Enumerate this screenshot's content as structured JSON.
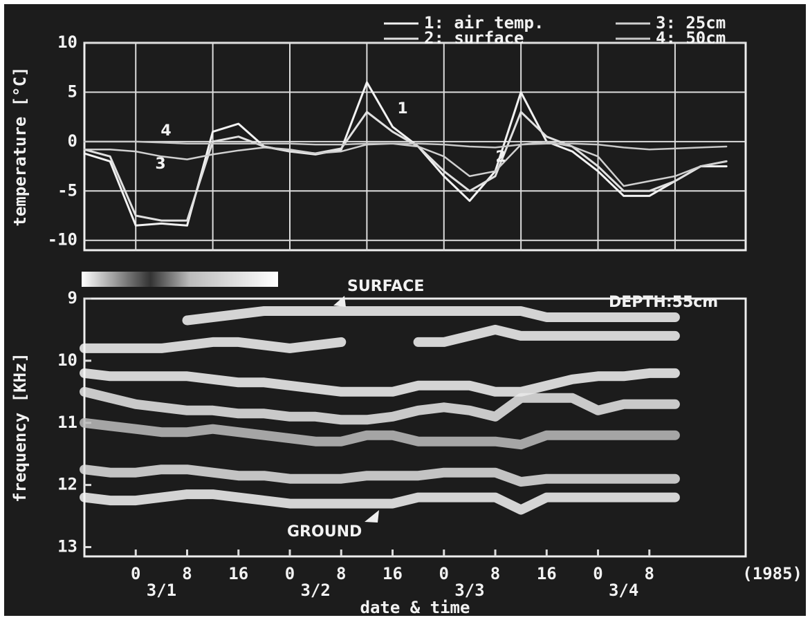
{
  "chart_data": [
    {
      "type": "line",
      "ylabel": "temperature [°C]",
      "x": [
        -8,
        -4,
        0,
        4,
        8,
        12,
        16,
        20,
        24,
        28,
        32,
        36,
        40,
        44,
        48,
        52,
        56,
        60,
        64,
        68,
        72,
        76,
        80,
        84,
        88,
        92
      ],
      "xlim": [
        -8,
        95
      ],
      "xticks": [
        0,
        12,
        24,
        36,
        48,
        60,
        72,
        84
      ],
      "ylim": [
        -11,
        10
      ],
      "yticks": [
        10,
        5,
        0,
        -5,
        -10
      ],
      "grid": true,
      "series": [
        {
          "name": "1: air temp.",
          "color": "#f2f2f2",
          "values": [
            -1.2,
            -2,
            -8.5,
            -8.3,
            -8.5,
            1,
            1.8,
            -0.5,
            -1,
            -1.3,
            -0.8,
            6,
            1.5,
            -0.5,
            -3.5,
            -6,
            -3,
            5,
            0,
            -1,
            -3,
            -5.5,
            -5.5,
            -4,
            -2.5,
            -2.5
          ]
        },
        {
          "name": "2: surface",
          "color": "#e0e0e0",
          "values": [
            -0.8,
            -1.5,
            -7.5,
            -8,
            -8,
            0,
            0.5,
            -0.5,
            -1,
            -1.2,
            -0.7,
            3,
            1,
            -0.5,
            -3,
            -5,
            -3.5,
            3,
            0.5,
            -0.5,
            -2.5,
            -5,
            -5,
            -4,
            -2.5,
            -2
          ]
        },
        {
          "name": "3: 25cm",
          "color": "#d0d0d0",
          "values": [
            -0.8,
            -0.8,
            -1,
            -1.5,
            -1.8,
            -1.3,
            -0.9,
            -0.6,
            -0.8,
            -1.2,
            -1,
            -0.3,
            -0.2,
            -0.5,
            -1.5,
            -3.5,
            -3,
            -0.3,
            0,
            -0.5,
            -1.5,
            -4.5,
            -4,
            -3.5,
            -2.5,
            -2
          ]
        },
        {
          "name": "4: 50cm",
          "color": "#c8c8c8",
          "values": [
            0,
            0,
            0,
            -0.1,
            -0.2,
            -0.2,
            -0.2,
            -0.2,
            -0.2,
            -0.3,
            -0.3,
            -0.2,
            -0.2,
            -0.2,
            -0.3,
            -0.5,
            -0.6,
            -0.3,
            -0.2,
            -0.2,
            -0.3,
            -0.6,
            -0.8,
            -0.7,
            -0.6,
            -0.5
          ]
        }
      ],
      "annotations": [
        "1",
        "2",
        "3",
        "4"
      ]
    },
    {
      "type": "echo",
      "ylabel": "frequency [KHz]",
      "xlabel": "date & time",
      "year": "(1985)",
      "x": [
        -8,
        -4,
        0,
        4,
        8,
        12,
        16,
        20,
        24,
        28,
        32,
        36,
        40,
        44,
        48,
        52,
        56,
        60,
        64,
        68,
        72,
        76,
        80,
        84,
        88,
        92
      ],
      "xlim": [
        -8,
        95
      ],
      "xticks": [
        0,
        8,
        16,
        {
          "value": 24,
          "label": "0"
        },
        {
          "value": 32,
          "label": "8"
        },
        {
          "value": 40,
          "label": "16"
        },
        {
          "value": 48,
          "label": "0"
        },
        {
          "value": 56,
          "label": "8"
        },
        {
          "value": 64,
          "label": "16"
        },
        {
          "value": 72,
          "label": "0"
        },
        {
          "value": 80,
          "label": "8"
        }
      ],
      "date_labels": [
        {
          "value": 4,
          "label": "3/1"
        },
        {
          "value": 28,
          "label": "3/2"
        },
        {
          "value": 52,
          "label": "3/3"
        },
        {
          "value": 76,
          "label": "3/4"
        }
      ],
      "ylim": [
        9,
        13.15
      ],
      "yticks": [
        9,
        10,
        11,
        12,
        13
      ],
      "inverted": true,
      "series": [
        {
          "color": "#f4f4f4",
          "values": [
            null,
            null,
            null,
            null,
            9.35,
            9.3,
            9.25,
            9.2,
            9.2,
            9.2,
            9.2,
            9.2,
            9.2,
            9.2,
            9.2,
            9.2,
            9.2,
            9.2,
            9.3,
            9.3,
            9.3,
            9.3,
            9.3,
            9.3,
            null,
            null
          ]
        },
        {
          "color": "#f4f4f4",
          "values": [
            9.8,
            9.8,
            9.8,
            9.8,
            9.75,
            9.7,
            9.7,
            9.75,
            9.8,
            9.75,
            9.7,
            null,
            null,
            9.7,
            9.7,
            9.6,
            9.5,
            9.6,
            9.6,
            9.6,
            9.6,
            9.6,
            9.6,
            9.6,
            null,
            null
          ]
        },
        {
          "color": "#f4f4f4",
          "values": [
            10.2,
            10.25,
            10.25,
            10.25,
            10.25,
            10.3,
            10.35,
            10.35,
            10.4,
            10.45,
            10.5,
            10.5,
            10.5,
            10.4,
            10.4,
            10.4,
            10.5,
            10.5,
            10.4,
            10.3,
            10.25,
            10.25,
            10.2,
            10.2,
            null,
            null
          ]
        },
        {
          "color": "#e8e8e8",
          "values": [
            10.5,
            10.6,
            10.7,
            10.75,
            10.8,
            10.8,
            10.85,
            10.85,
            10.9,
            10.9,
            10.95,
            10.95,
            10.9,
            10.8,
            10.75,
            10.8,
            10.9,
            10.6,
            10.6,
            10.6,
            10.8,
            10.7,
            10.7,
            10.7,
            null,
            null
          ]
        },
        {
          "color": "#bdbdbd",
          "values": [
            11.0,
            11.05,
            11.1,
            11.15,
            11.15,
            11.1,
            11.15,
            11.2,
            11.25,
            11.3,
            11.3,
            11.2,
            11.2,
            11.3,
            11.3,
            11.3,
            11.3,
            11.35,
            11.2,
            11.2,
            11.2,
            11.2,
            11.2,
            11.2,
            null,
            null
          ]
        },
        {
          "color": "#e0e0e0",
          "values": [
            11.75,
            11.8,
            11.8,
            11.75,
            11.75,
            11.8,
            11.85,
            11.85,
            11.9,
            11.9,
            11.9,
            11.85,
            11.85,
            11.85,
            11.8,
            11.8,
            11.8,
            11.95,
            11.9,
            11.9,
            11.9,
            11.9,
            11.9,
            11.9,
            null,
            null
          ]
        },
        {
          "color": "#f4f4f4",
          "values": [
            12.2,
            12.25,
            12.25,
            12.2,
            12.15,
            12.15,
            12.2,
            12.25,
            12.3,
            12.3,
            12.3,
            12.3,
            12.3,
            12.2,
            12.2,
            12.2,
            12.2,
            12.4,
            12.2,
            12.2,
            12.2,
            12.2,
            12.2,
            12.2,
            null,
            null
          ]
        }
      ],
      "annotations": [
        "SURFACE",
        "GROUND",
        "DEPTH:55cm"
      ]
    }
  ]
}
